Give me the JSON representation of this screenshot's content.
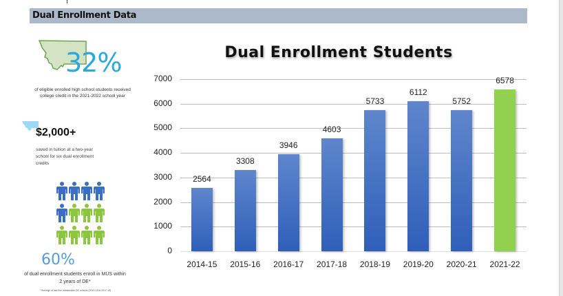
{
  "header": {
    "title": "Dual Enrollment Data"
  },
  "infographic": {
    "stat1": {
      "value": "32%",
      "caption": "of eligible enrolled high school students received college credit in the 2021-2022 school year",
      "icon": "montana-map-icon"
    },
    "stat2": {
      "value": "$2,000+",
      "caption": "saved in tuition at a two-year school for six dual enrollment credits",
      "icon": "montana-map-small-icon"
    },
    "stat3": {
      "value": "60%",
      "caption": "of dual enrollment students enroll in MUS within 2 years of DE*",
      "footnote": "*Average of last five measurable DE cohorts (2013-14 to 2017-18)",
      "people": [
        "blue",
        "blue",
        "blue",
        "blue",
        "blue",
        "green",
        "green",
        "green",
        "green",
        "green",
        "green",
        "green"
      ]
    }
  },
  "colors": {
    "bar_blue_top": "#5f86cc",
    "bar_blue_bottom": "#2f5fb9",
    "bar_green": "#92d050",
    "header_band": "#acb9ca",
    "stat_blue": "#29a8e0",
    "people_blue": "#3a6fc4",
    "people_green": "#8cc63f"
  },
  "chart_data": {
    "type": "bar",
    "title": "Dual Enrollment Students",
    "xlabel": "",
    "ylabel": "",
    "categories": [
      "2014-15",
      "2015-16",
      "2016-17",
      "2017-18",
      "2018-19",
      "2019-20",
      "2020-21",
      "2021-22"
    ],
    "values": [
      2564,
      3308,
      3946,
      4603,
      5733,
      6112,
      5752,
      6578
    ],
    "bar_colors": [
      "blue",
      "blue",
      "blue",
      "blue",
      "blue",
      "blue",
      "blue",
      "green"
    ],
    "ylim": [
      0,
      7000
    ],
    "yticks": [
      "0",
      "1000",
      "2000",
      "3000",
      "4000",
      "5000",
      "6000",
      "7000"
    ],
    "grid": true,
    "legend": null,
    "data_labels": true
  }
}
